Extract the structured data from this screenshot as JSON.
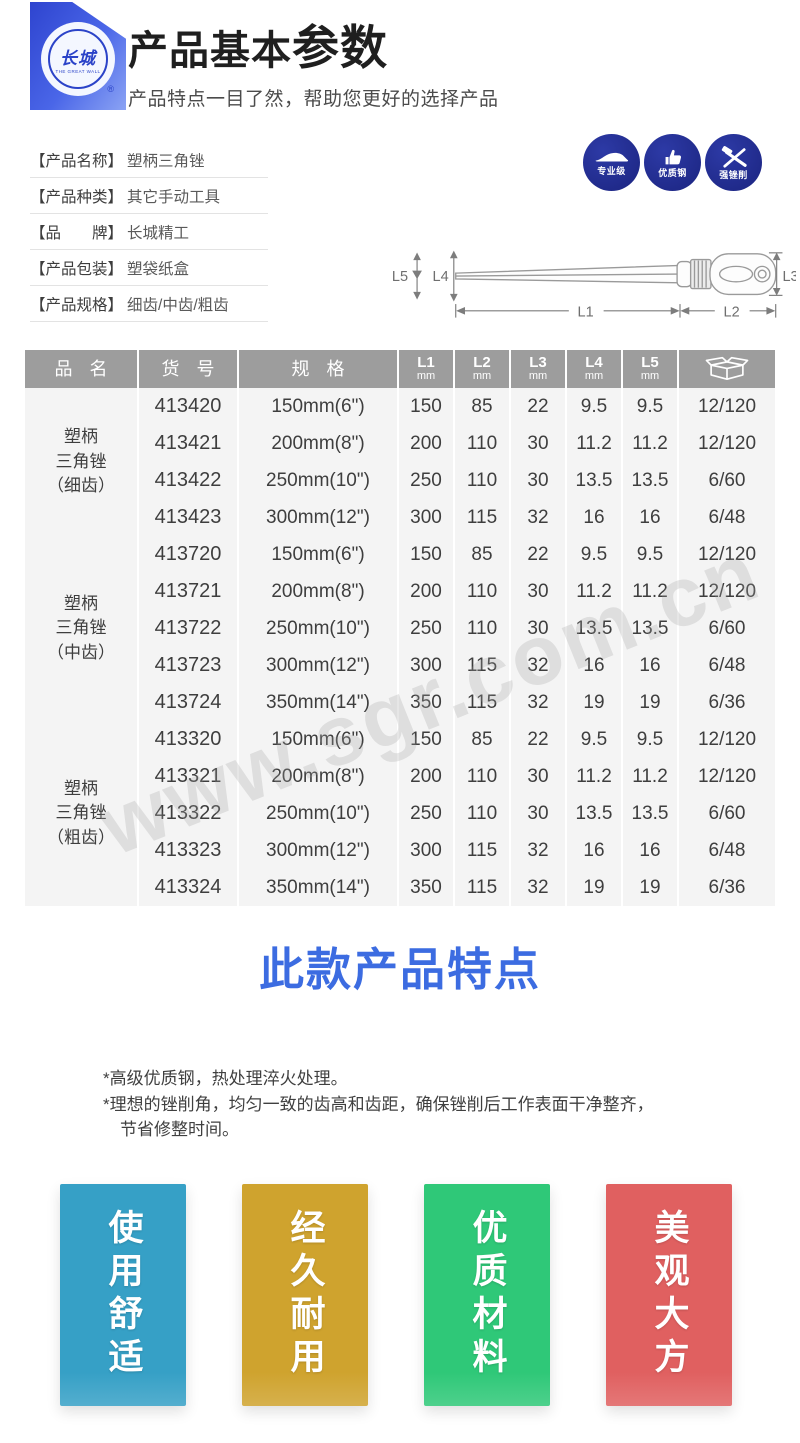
{
  "header": {
    "title_regular": "产品基本",
    "title_bold": "参数",
    "subtitle": "产品特点一目了然，帮助您更好的选择产品",
    "logo": {
      "brand_mark": "长城",
      "brand_arc": "THE GREAT WALL",
      "registered": "®"
    }
  },
  "info": {
    "rows": [
      {
        "label": "【产品名称】",
        "value": "塑柄三角锉"
      },
      {
        "label": "【产品种类】",
        "value": "其它手动工具"
      },
      {
        "label": "【品　　牌】",
        "value": "长城精工"
      },
      {
        "label": "【产品包装】",
        "value": "塑袋纸盒"
      },
      {
        "label": "【产品规格】",
        "value": "细齿/中齿/粗齿"
      }
    ]
  },
  "badges": [
    {
      "icon": "car-icon",
      "label": "专业级"
    },
    {
      "icon": "thumb-up-icon",
      "label": "优质钢"
    },
    {
      "icon": "crossed-tools-icon",
      "label": "强锉削"
    }
  ],
  "diagram": {
    "l1": "L1",
    "l2": "L2",
    "l3": "L3",
    "l4": "L4",
    "l5": "L5"
  },
  "table": {
    "headers": [
      {
        "label": "品 名"
      },
      {
        "label": "货 号"
      },
      {
        "label": "规 格"
      },
      {
        "label": "L1",
        "sub": "mm"
      },
      {
        "label": "L2",
        "sub": "mm"
      },
      {
        "label": "L3",
        "sub": "mm"
      },
      {
        "label": "L4",
        "sub": "mm"
      },
      {
        "label": "L5",
        "sub": "mm"
      },
      {
        "icon": "carton-box-icon"
      }
    ],
    "groups": [
      {
        "name_lines": [
          "塑柄",
          "三角锉",
          "（细齿）"
        ],
        "rows": [
          [
            "413420",
            "150mm(6\")",
            "150",
            "85",
            "22",
            "9.5",
            "9.5",
            "12/120"
          ],
          [
            "413421",
            "200mm(8\")",
            "200",
            "110",
            "30",
            "11.2",
            "11.2",
            "12/120"
          ],
          [
            "413422",
            "250mm(10\")",
            "250",
            "110",
            "30",
            "13.5",
            "13.5",
            "6/60"
          ],
          [
            "413423",
            "300mm(12\")",
            "300",
            "115",
            "32",
            "16",
            "16",
            "6/48"
          ]
        ]
      },
      {
        "name_lines": [
          "塑柄",
          "三角锉",
          "（中齿）"
        ],
        "rows": [
          [
            "413720",
            "150mm(6\")",
            "150",
            "85",
            "22",
            "9.5",
            "9.5",
            "12/120"
          ],
          [
            "413721",
            "200mm(8\")",
            "200",
            "110",
            "30",
            "11.2",
            "11.2",
            "12/120"
          ],
          [
            "413722",
            "250mm(10\")",
            "250",
            "110",
            "30",
            "13.5",
            "13.5",
            "6/60"
          ],
          [
            "413723",
            "300mm(12\")",
            "300",
            "115",
            "32",
            "16",
            "16",
            "6/48"
          ],
          [
            "413724",
            "350mm(14\")",
            "350",
            "115",
            "32",
            "19",
            "19",
            "6/36"
          ]
        ]
      },
      {
        "name_lines": [
          "塑柄",
          "三角锉",
          "（粗齿）"
        ],
        "rows": [
          [
            "413320",
            "150mm(6\")",
            "150",
            "85",
            "22",
            "9.5",
            "9.5",
            "12/120"
          ],
          [
            "413321",
            "200mm(8\")",
            "200",
            "110",
            "30",
            "11.2",
            "11.2",
            "12/120"
          ],
          [
            "413322",
            "250mm(10\")",
            "250",
            "110",
            "30",
            "13.5",
            "13.5",
            "6/60"
          ],
          [
            "413323",
            "300mm(12\")",
            "300",
            "115",
            "32",
            "16",
            "16",
            "6/48"
          ],
          [
            "413324",
            "350mm(14\")",
            "350",
            "115",
            "32",
            "19",
            "19",
            "6/36"
          ]
        ]
      }
    ]
  },
  "watermark": "www.sgr.com.cn",
  "features": {
    "title": "此款产品特点",
    "bullets": [
      "*高级优质钢，热处理淬火处理。",
      "*理想的锉削角，均匀一致的齿高和齿距，确保锉削后工作表面干净整齐，",
      "　节省修整时间。"
    ]
  },
  "feature_blocks": [
    {
      "label": "使用舒适",
      "color": "#36a0c6"
    },
    {
      "label": "经久耐用",
      "color": "#cfa32e"
    },
    {
      "label": "优质材料",
      "color": "#2fc878"
    },
    {
      "label": "美观大方",
      "color": "#e06060"
    }
  ],
  "colors": {
    "accent_blue_title": "#3c6ce1",
    "badge_navy": "#1b2480",
    "table_header_gray": "#9d9d9d",
    "logo_blue": "#3a54dd"
  }
}
